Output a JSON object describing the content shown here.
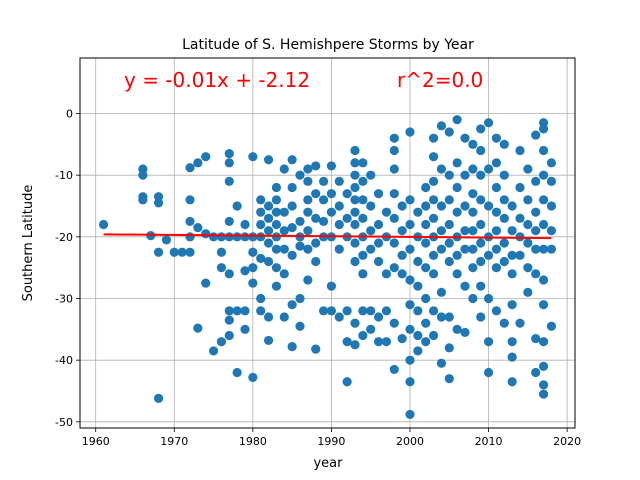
{
  "chart_data": {
    "type": "scatter",
    "title": "Latitude of S. Hemishpere Storms by Year",
    "xlabel": "year",
    "ylabel": "Southern Latitude",
    "xlim": [
      1958,
      2021
    ],
    "ylim": [
      -51,
      9
    ],
    "xticks": [
      1960,
      1970,
      1980,
      1990,
      2000,
      2010,
      2020
    ],
    "yticks": [
      0,
      -10,
      -20,
      -30,
      -40,
      -50
    ],
    "grid": true,
    "colors": {
      "points": "#1f77b4",
      "line": "#ff0000",
      "annotation": "#ff0000"
    },
    "annotations": [
      "y = -0.01x + -2.12",
      "r^2=0.0"
    ],
    "regression": {
      "slope": -0.01,
      "intercept": -2.12,
      "x": [
        1961,
        2018
      ],
      "y": [
        -19.6,
        -20.2
      ]
    },
    "points": [
      [
        1961,
        -18
      ],
      [
        1966,
        -9
      ],
      [
        1966,
        -10
      ],
      [
        1966,
        -13.5
      ],
      [
        1966,
        -14
      ],
      [
        1967,
        -19.8
      ],
      [
        1968,
        -13.5
      ],
      [
        1968,
        -14.5
      ],
      [
        1968,
        -22.5
      ],
      [
        1968,
        -46.2
      ],
      [
        1969,
        -20.5
      ],
      [
        1970,
        -22.5
      ],
      [
        1971,
        -22.5
      ],
      [
        1972,
        -22.5
      ],
      [
        1972,
        -20
      ],
      [
        1972,
        -8.8
      ],
      [
        1972,
        -14
      ],
      [
        1972,
        -17.5
      ],
      [
        1973,
        -8
      ],
      [
        1973,
        -18.5
      ],
      [
        1973,
        -34.8
      ],
      [
        1974,
        -7
      ],
      [
        1974,
        -19.5
      ],
      [
        1974,
        -27.5
      ],
      [
        1975,
        -20
      ],
      [
        1975,
        -38.5
      ],
      [
        1976,
        -20
      ],
      [
        1976,
        -22.5
      ],
      [
        1976,
        -25
      ],
      [
        1976,
        -37
      ],
      [
        1977,
        -6.5
      ],
      [
        1977,
        -8
      ],
      [
        1977,
        -11
      ],
      [
        1977,
        -17.5
      ],
      [
        1977,
        -20
      ],
      [
        1977,
        -26
      ],
      [
        1977,
        -32
      ],
      [
        1977,
        -33.5
      ],
      [
        1977,
        -36
      ],
      [
        1978,
        -15
      ],
      [
        1978,
        -20
      ],
      [
        1978,
        -32
      ],
      [
        1978,
        -42
      ],
      [
        1979,
        -18
      ],
      [
        1979,
        -20
      ],
      [
        1979,
        -25.5
      ],
      [
        1979,
        -32
      ],
      [
        1979,
        -35
      ],
      [
        1980,
        -7
      ],
      [
        1980,
        -20
      ],
      [
        1980,
        -22.5
      ],
      [
        1980,
        -25
      ],
      [
        1980,
        -27.5
      ],
      [
        1980,
        -42.8
      ],
      [
        1981,
        -14
      ],
      [
        1981,
        -16
      ],
      [
        1981,
        -18
      ],
      [
        1981,
        -20
      ],
      [
        1981,
        -23.5
      ],
      [
        1981,
        -30
      ],
      [
        1981,
        -32
      ],
      [
        1982,
        -7.5
      ],
      [
        1982,
        -15
      ],
      [
        1982,
        -17
      ],
      [
        1982,
        -19
      ],
      [
        1982,
        -21
      ],
      [
        1982,
        -24
      ],
      [
        1982,
        -33
      ],
      [
        1982,
        -36.8
      ],
      [
        1983,
        -12
      ],
      [
        1983,
        -14
      ],
      [
        1983,
        -16
      ],
      [
        1983,
        -18
      ],
      [
        1983,
        -20
      ],
      [
        1983,
        -22
      ],
      [
        1983,
        -25
      ],
      [
        1983,
        -28
      ],
      [
        1984,
        -9
      ],
      [
        1984,
        -16
      ],
      [
        1984,
        -19
      ],
      [
        1984,
        -22
      ],
      [
        1984,
        -26
      ],
      [
        1984,
        -33
      ],
      [
        1985,
        -7.5
      ],
      [
        1985,
        -12
      ],
      [
        1985,
        -15
      ],
      [
        1985,
        -18.5
      ],
      [
        1985,
        -23
      ],
      [
        1985,
        -31
      ],
      [
        1985,
        -37.8
      ],
      [
        1986,
        -10
      ],
      [
        1986,
        -17.5
      ],
      [
        1986,
        -20
      ],
      [
        1986,
        -21.5
      ],
      [
        1986,
        -30
      ],
      [
        1986,
        -34.5
      ],
      [
        1987,
        -9
      ],
      [
        1987,
        -11
      ],
      [
        1987,
        -14
      ],
      [
        1987,
        -16
      ],
      [
        1987,
        -19
      ],
      [
        1987,
        -22
      ],
      [
        1987,
        -27
      ],
      [
        1988,
        -8.5
      ],
      [
        1988,
        -13
      ],
      [
        1988,
        -17
      ],
      [
        1988,
        -21
      ],
      [
        1988,
        -24
      ],
      [
        1988,
        -38.2
      ],
      [
        1989,
        -11
      ],
      [
        1989,
        -14
      ],
      [
        1989,
        -17.5
      ],
      [
        1989,
        -20
      ],
      [
        1989,
        -32
      ],
      [
        1990,
        -8.5
      ],
      [
        1990,
        -13
      ],
      [
        1990,
        -16
      ],
      [
        1990,
        -20
      ],
      [
        1990,
        -28
      ],
      [
        1990,
        -32
      ],
      [
        1991,
        -11
      ],
      [
        1991,
        -15
      ],
      [
        1991,
        -18
      ],
      [
        1991,
        -22
      ],
      [
        1991,
        -33
      ],
      [
        1992,
        -13
      ],
      [
        1992,
        -17
      ],
      [
        1992,
        -20
      ],
      [
        1992,
        -32
      ],
      [
        1992,
        -37
      ],
      [
        1992,
        -43.5
      ],
      [
        1993,
        -6
      ],
      [
        1993,
        -8
      ],
      [
        1993,
        -10
      ],
      [
        1993,
        -12
      ],
      [
        1993,
        -14
      ],
      [
        1993,
        -16
      ],
      [
        1993,
        -18
      ],
      [
        1993,
        -21
      ],
      [
        1993,
        -24
      ],
      [
        1993,
        -34
      ],
      [
        1993,
        -37.5
      ],
      [
        1994,
        -8
      ],
      [
        1994,
        -11
      ],
      [
        1994,
        -14
      ],
      [
        1994,
        -17
      ],
      [
        1994,
        -20
      ],
      [
        1994,
        -23
      ],
      [
        1994,
        -26
      ],
      [
        1994,
        -32
      ],
      [
        1994,
        -36
      ],
      [
        1995,
        -10
      ],
      [
        1995,
        -15
      ],
      [
        1995,
        -19
      ],
      [
        1995,
        -22
      ],
      [
        1995,
        -32
      ],
      [
        1995,
        -35
      ],
      [
        1996,
        -13
      ],
      [
        1996,
        -18
      ],
      [
        1996,
        -21
      ],
      [
        1996,
        -24
      ],
      [
        1996,
        -33
      ],
      [
        1996,
        -37
      ],
      [
        1997,
        -16
      ],
      [
        1997,
        -20
      ],
      [
        1997,
        -26
      ],
      [
        1997,
        -32
      ],
      [
        1997,
        -37
      ],
      [
        1998,
        -4
      ],
      [
        1998,
        -6
      ],
      [
        1998,
        -9
      ],
      [
        1998,
        -13
      ],
      [
        1998,
        -17
      ],
      [
        1998,
        -21
      ],
      [
        1998,
        -25
      ],
      [
        1998,
        -34
      ],
      [
        1998,
        -41.5
      ],
      [
        1999,
        -15
      ],
      [
        1999,
        -19
      ],
      [
        1999,
        -23
      ],
      [
        1999,
        -26
      ],
      [
        1999,
        -36.5
      ],
      [
        2000,
        -3
      ],
      [
        2000,
        -14
      ],
      [
        2000,
        -18
      ],
      [
        2000,
        -22
      ],
      [
        2000,
        -27
      ],
      [
        2000,
        -31
      ],
      [
        2000,
        -35
      ],
      [
        2000,
        -40
      ],
      [
        2000,
        -43.5
      ],
      [
        2000,
        -48.8
      ],
      [
        2001,
        -16
      ],
      [
        2001,
        -20
      ],
      [
        2001,
        -24
      ],
      [
        2001,
        -28
      ],
      [
        2001,
        -32
      ],
      [
        2001,
        -36
      ],
      [
        2001,
        -38.5
      ],
      [
        2002,
        -12
      ],
      [
        2002,
        -15
      ],
      [
        2002,
        -18
      ],
      [
        2002,
        -21
      ],
      [
        2002,
        -25
      ],
      [
        2002,
        -30
      ],
      [
        2002,
        -34
      ],
      [
        2002,
        -37
      ],
      [
        2003,
        -4
      ],
      [
        2003,
        -7
      ],
      [
        2003,
        -11
      ],
      [
        2003,
        -14
      ],
      [
        2003,
        -17
      ],
      [
        2003,
        -20
      ],
      [
        2003,
        -23
      ],
      [
        2003,
        -26
      ],
      [
        2003,
        -32
      ],
      [
        2003,
        -36
      ],
      [
        2004,
        -2
      ],
      [
        2004,
        -9
      ],
      [
        2004,
        -15
      ],
      [
        2004,
        -19
      ],
      [
        2004,
        -22
      ],
      [
        2004,
        -29
      ],
      [
        2004,
        -33
      ],
      [
        2004,
        -40.5
      ],
      [
        2005,
        -3
      ],
      [
        2005,
        -10
      ],
      [
        2005,
        -14
      ],
      [
        2005,
        -18
      ],
      [
        2005,
        -21
      ],
      [
        2005,
        -24
      ],
      [
        2005,
        -33
      ],
      [
        2005,
        -38
      ],
      [
        2005,
        -43
      ],
      [
        2006,
        -1
      ],
      [
        2006,
        -8
      ],
      [
        2006,
        -12
      ],
      [
        2006,
        -16
      ],
      [
        2006,
        -20
      ],
      [
        2006,
        -23
      ],
      [
        2006,
        -26
      ],
      [
        2006,
        -35
      ],
      [
        2007,
        -4
      ],
      [
        2007,
        -10
      ],
      [
        2007,
        -15
      ],
      [
        2007,
        -19
      ],
      [
        2007,
        -22
      ],
      [
        2007,
        -28
      ],
      [
        2007,
        -35.5
      ],
      [
        2008,
        -5
      ],
      [
        2008,
        -9
      ],
      [
        2008,
        -13
      ],
      [
        2008,
        -16
      ],
      [
        2008,
        -19
      ],
      [
        2008,
        -22
      ],
      [
        2008,
        -25
      ],
      [
        2008,
        -30
      ],
      [
        2009,
        -2.5
      ],
      [
        2009,
        -6
      ],
      [
        2009,
        -10
      ],
      [
        2009,
        -14
      ],
      [
        2009,
        -18
      ],
      [
        2009,
        -21
      ],
      [
        2009,
        -24
      ],
      [
        2009,
        -28
      ],
      [
        2009,
        -33
      ],
      [
        2010,
        -1.5
      ],
      [
        2010,
        -9
      ],
      [
        2010,
        -15
      ],
      [
        2010,
        -20
      ],
      [
        2010,
        -23
      ],
      [
        2010,
        -30
      ],
      [
        2010,
        -37
      ],
      [
        2010,
        -42
      ],
      [
        2011,
        -4
      ],
      [
        2011,
        -8
      ],
      [
        2011,
        -12
      ],
      [
        2011,
        -16
      ],
      [
        2011,
        -19
      ],
      [
        2011,
        -22
      ],
      [
        2011,
        -25
      ],
      [
        2011,
        -32
      ],
      [
        2012,
        -5
      ],
      [
        2012,
        -10
      ],
      [
        2012,
        -14
      ],
      [
        2012,
        -17
      ],
      [
        2012,
        -21
      ],
      [
        2012,
        -24
      ],
      [
        2012,
        -34
      ],
      [
        2013,
        -15
      ],
      [
        2013,
        -19
      ],
      [
        2013,
        -23
      ],
      [
        2013,
        -26
      ],
      [
        2013,
        -31
      ],
      [
        2013,
        -37
      ],
      [
        2013,
        -39.5
      ],
      [
        2013,
        -43.5
      ],
      [
        2014,
        -6
      ],
      [
        2014,
        -12
      ],
      [
        2014,
        -17
      ],
      [
        2014,
        -20
      ],
      [
        2014,
        -23
      ],
      [
        2014,
        -34
      ],
      [
        2015,
        -9
      ],
      [
        2015,
        -14
      ],
      [
        2015,
        -18
      ],
      [
        2015,
        -21
      ],
      [
        2015,
        -25
      ],
      [
        2015,
        -29
      ],
      [
        2016,
        -3.5
      ],
      [
        2016,
        -11
      ],
      [
        2016,
        -16
      ],
      [
        2016,
        -19
      ],
      [
        2016,
        -22
      ],
      [
        2016,
        -26
      ],
      [
        2016,
        -36.5
      ],
      [
        2016,
        -42
      ],
      [
        2017,
        -1.5
      ],
      [
        2017,
        -2.5
      ],
      [
        2017,
        -6
      ],
      [
        2017,
        -10
      ],
      [
        2017,
        -14
      ],
      [
        2017,
        -18
      ],
      [
        2017,
        -22
      ],
      [
        2017,
        -27
      ],
      [
        2017,
        -31
      ],
      [
        2017,
        -37
      ],
      [
        2017,
        -41
      ],
      [
        2017,
        -44
      ],
      [
        2017,
        -45.5
      ],
      [
        2018,
        -8
      ],
      [
        2018,
        -11
      ],
      [
        2018,
        -15
      ],
      [
        2018,
        -19
      ],
      [
        2018,
        -22
      ],
      [
        2018,
        -34.5
      ]
    ]
  }
}
